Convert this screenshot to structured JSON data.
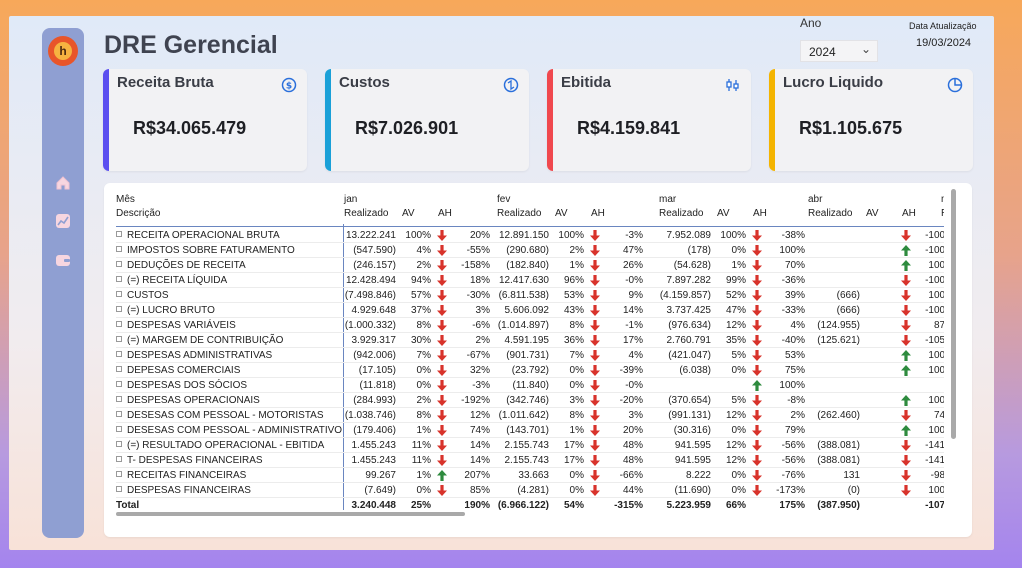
{
  "header": {
    "title": "DRE Gerencial",
    "year_label": "Ano",
    "year_value": "2024",
    "update_label": "Data Atualização",
    "update_value": "19/03/2024"
  },
  "sidebar": {
    "items": [
      {
        "name": "home-icon"
      },
      {
        "name": "chart-icon"
      },
      {
        "name": "wallet-icon"
      }
    ]
  },
  "kpis": [
    {
      "title": "Receita Bruta",
      "value": "R$34.065.479",
      "color": "#5b4ff0",
      "icon": "dollar-circle-icon"
    },
    {
      "title": "Custos",
      "value": "R$7.026.901",
      "color": "#1aa0d8",
      "icon": "cycle-icon"
    },
    {
      "title": "Ebitida",
      "value": "R$4.159.841",
      "color": "#f0484e",
      "icon": "candlestick-icon"
    },
    {
      "title": "Lucro Liquido",
      "value": "R$1.105.675",
      "color": "#f4b400",
      "icon": "pie-icon"
    }
  ],
  "table": {
    "row_header_1": "Mês",
    "row_header_2": "Descrição",
    "months": [
      "jan",
      "fev",
      "mar",
      "abr",
      "m"
    ],
    "sub_headers": [
      "Realizado",
      "AV",
      "AH"
    ],
    "partial_sub_header": "Re",
    "rows": [
      {
        "desc": "RECEITA OPERACIONAL BRUTA",
        "jan": [
          "13.222.241",
          "100%",
          "down",
          "20%"
        ],
        "fev": [
          "12.891.150",
          "100%",
          "down",
          "-3%"
        ],
        "mar": [
          "7.952.089",
          "100%",
          "down",
          "-38%"
        ],
        "abr": [
          "",
          "",
          "down",
          "-100%"
        ]
      },
      {
        "desc": "IMPOSTOS SOBRE FATURAMENTO",
        "jan": [
          "(547.590)",
          "4%",
          "down",
          "-55%"
        ],
        "fev": [
          "(290.680)",
          "2%",
          "down",
          "47%"
        ],
        "mar": [
          "(178)",
          "0%",
          "down",
          "100%"
        ],
        "abr": [
          "",
          "",
          "up",
          "-100%"
        ]
      },
      {
        "desc": "DEDUÇÕES DE RECEITA",
        "jan": [
          "(246.157)",
          "2%",
          "down",
          "-158%"
        ],
        "fev": [
          "(182.840)",
          "1%",
          "down",
          "26%"
        ],
        "mar": [
          "(54.628)",
          "1%",
          "down",
          "70%"
        ],
        "abr": [
          "",
          "",
          "up",
          "100%"
        ]
      },
      {
        "desc": "(=) RECEITA LÍQUIDA",
        "jan": [
          "12.428.494",
          "94%",
          "down",
          "18%"
        ],
        "fev": [
          "12.417.630",
          "96%",
          "down",
          "-0%"
        ],
        "mar": [
          "7.897.282",
          "99%",
          "down",
          "-36%"
        ],
        "abr": [
          "",
          "",
          "down",
          "-100%"
        ]
      },
      {
        "desc": "CUSTOS",
        "jan": [
          "(7.498.846)",
          "57%",
          "down",
          "-30%"
        ],
        "fev": [
          "(6.811.538)",
          "53%",
          "down",
          "9%"
        ],
        "mar": [
          "(4.159.857)",
          "52%",
          "down",
          "39%"
        ],
        "abr": [
          "(666)",
          "",
          "down",
          "100%"
        ]
      },
      {
        "desc": "(=) LUCRO BRUTO",
        "jan": [
          "4.929.648",
          "37%",
          "down",
          "3%"
        ],
        "fev": [
          "5.606.092",
          "43%",
          "down",
          "14%"
        ],
        "mar": [
          "3.737.425",
          "47%",
          "down",
          "-33%"
        ],
        "abr": [
          "(666)",
          "",
          "down",
          "-100%"
        ]
      },
      {
        "desc": "DESPESAS VARIÁVEIS",
        "jan": [
          "(1.000.332)",
          "8%",
          "down",
          "-6%"
        ],
        "fev": [
          "(1.014.897)",
          "8%",
          "down",
          "-1%"
        ],
        "mar": [
          "(976.634)",
          "12%",
          "down",
          "4%"
        ],
        "abr": [
          "(124.955)",
          "",
          "down",
          "87%"
        ]
      },
      {
        "desc": "(=) MARGEM DE CONTRIBUIÇÃO",
        "jan": [
          "3.929.317",
          "30%",
          "down",
          "2%"
        ],
        "fev": [
          "4.591.195",
          "36%",
          "down",
          "17%"
        ],
        "mar": [
          "2.760.791",
          "35%",
          "down",
          "-40%"
        ],
        "abr": [
          "(125.621)",
          "",
          "down",
          "-105%"
        ]
      },
      {
        "desc": "DESPESAS ADMINISTRATIVAS",
        "jan": [
          "(942.006)",
          "7%",
          "down",
          "-67%"
        ],
        "fev": [
          "(901.731)",
          "7%",
          "down",
          "4%"
        ],
        "mar": [
          "(421.047)",
          "5%",
          "down",
          "53%"
        ],
        "abr": [
          "",
          "",
          "up",
          "100%"
        ]
      },
      {
        "desc": "DEPESAS COMERCIAIS",
        "jan": [
          "(17.105)",
          "0%",
          "down",
          "32%"
        ],
        "fev": [
          "(23.792)",
          "0%",
          "down",
          "-39%"
        ],
        "mar": [
          "(6.038)",
          "0%",
          "down",
          "75%"
        ],
        "abr": [
          "",
          "",
          "up",
          "100%"
        ]
      },
      {
        "desc": "DESPESAS DOS SÓCIOS",
        "jan": [
          "(11.818)",
          "0%",
          "down",
          "-3%"
        ],
        "fev": [
          "(11.840)",
          "0%",
          "down",
          "-0%"
        ],
        "mar": [
          "",
          "",
          "up",
          "100%"
        ],
        "abr": [
          "",
          "",
          "",
          ""
        ]
      },
      {
        "desc": "DESPESAS OPERACIONAIS",
        "jan": [
          "(284.993)",
          "2%",
          "down",
          "-192%"
        ],
        "fev": [
          "(342.746)",
          "3%",
          "down",
          "-20%"
        ],
        "mar": [
          "(370.654)",
          "5%",
          "down",
          "-8%"
        ],
        "abr": [
          "",
          "",
          "up",
          "100%"
        ]
      },
      {
        "desc": "DESESAS COM PESSOAL - MOTORISTAS",
        "jan": [
          "(1.038.746)",
          "8%",
          "down",
          "12%"
        ],
        "fev": [
          "(1.011.642)",
          "8%",
          "down",
          "3%"
        ],
        "mar": [
          "(991.131)",
          "12%",
          "down",
          "2%"
        ],
        "abr": [
          "(262.460)",
          "",
          "down",
          "74%"
        ]
      },
      {
        "desc": "DESESAS COM PESSOAL - ADMINISTRATIVO",
        "jan": [
          "(179.406)",
          "1%",
          "down",
          "74%"
        ],
        "fev": [
          "(143.701)",
          "1%",
          "down",
          "20%"
        ],
        "mar": [
          "(30.316)",
          "0%",
          "down",
          "79%"
        ],
        "abr": [
          "",
          "",
          "up",
          "100%"
        ]
      },
      {
        "desc": "(=) RESULTADO OPERACIONAL - EBITIDA",
        "jan": [
          "1.455.243",
          "11%",
          "down",
          "14%"
        ],
        "fev": [
          "2.155.743",
          "17%",
          "down",
          "48%"
        ],
        "mar": [
          "941.595",
          "12%",
          "down",
          "-56%"
        ],
        "abr": [
          "(388.081)",
          "",
          "down",
          "-141%"
        ]
      },
      {
        "desc": "T- DESPESAS FINANCEIRAS",
        "jan": [
          "1.455.243",
          "11%",
          "down",
          "14%"
        ],
        "fev": [
          "2.155.743",
          "17%",
          "down",
          "48%"
        ],
        "mar": [
          "941.595",
          "12%",
          "down",
          "-56%"
        ],
        "abr": [
          "(388.081)",
          "",
          "down",
          "-141%"
        ]
      },
      {
        "desc": "RECEITAS FINANCEIRAS",
        "jan": [
          "99.267",
          "1%",
          "up",
          "207%"
        ],
        "fev": [
          "33.663",
          "0%",
          "down",
          "-66%"
        ],
        "mar": [
          "8.222",
          "0%",
          "down",
          "-76%"
        ],
        "abr": [
          "131",
          "",
          "down",
          "-98%"
        ]
      },
      {
        "desc": "DESPESAS FINANCEIRAS",
        "jan": [
          "(7.649)",
          "0%",
          "down",
          "85%"
        ],
        "fev": [
          "(4.281)",
          "0%",
          "down",
          "44%"
        ],
        "mar": [
          "(11.690)",
          "0%",
          "down",
          "-173%"
        ],
        "abr": [
          "(0)",
          "",
          "down",
          "100%"
        ]
      }
    ],
    "total": {
      "desc": "Total",
      "jan": [
        "3.240.448",
        "25%",
        "",
        "190%"
      ],
      "fev": [
        "(6.966.122)",
        "54%",
        "",
        "-315%"
      ],
      "mar": [
        "5.223.959",
        "66%",
        "",
        "175%"
      ],
      "abr": [
        "(387.950)",
        "",
        "",
        "-107%"
      ]
    }
  }
}
